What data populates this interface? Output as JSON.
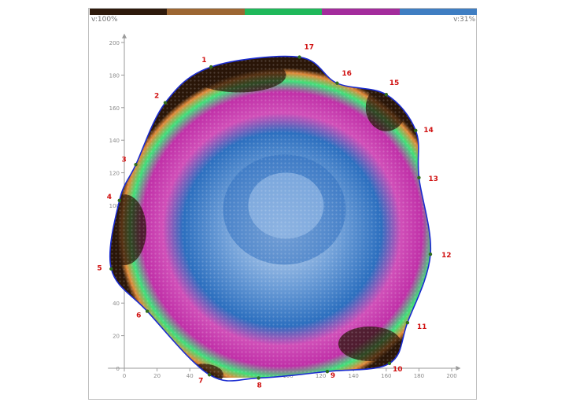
{
  "legend": {
    "colors": [
      "#2e1a0c",
      "#9c6632",
      "#1fb85a",
      "#a32c9c",
      "#3f7ec2"
    ],
    "left_label": "v:100%",
    "right_label": "v:31%"
  },
  "chart_data": {
    "type": "scatter",
    "title": "",
    "xlabel": "",
    "ylabel": "",
    "xlim": [
      0,
      210
    ],
    "ylim": [
      -2,
      205
    ],
    "x_ticks": [
      "0",
      "20",
      "40",
      "60",
      "80",
      "100",
      "120",
      "140",
      "160",
      "180",
      "200"
    ],
    "y_ticks": [
      "0",
      "20",
      "40",
      "60",
      "80",
      "100",
      "120",
      "140",
      "160",
      "180",
      "200"
    ],
    "grid": false,
    "boundary_points": [
      {
        "label": "1",
        "x": 53,
        "y": 185
      },
      {
        "label": "2",
        "x": 25,
        "y": 163
      },
      {
        "label": "3",
        "x": 7,
        "y": 125
      },
      {
        "label": "4",
        "x": -3,
        "y": 103
      },
      {
        "label": "5",
        "x": -8,
        "y": 61
      },
      {
        "label": "6",
        "x": 14,
        "y": 35
      },
      {
        "label": "7",
        "x": 52,
        "y": -4
      },
      {
        "label": "8",
        "x": 82,
        "y": -6
      },
      {
        "label": "9",
        "x": 124,
        "y": -2
      },
      {
        "label": "10",
        "x": 162,
        "y": 3
      },
      {
        "label": "11",
        "x": 173,
        "y": 28
      },
      {
        "label": "12",
        "x": 187,
        "y": 70
      },
      {
        "label": "13",
        "x": 180,
        "y": 117
      },
      {
        "label": "14",
        "x": 178,
        "y": 146
      },
      {
        "label": "15",
        "x": 160,
        "y": 168
      },
      {
        "label": "16",
        "x": 130,
        "y": 175
      },
      {
        "label": "17",
        "x": 107,
        "y": 191
      }
    ]
  }
}
